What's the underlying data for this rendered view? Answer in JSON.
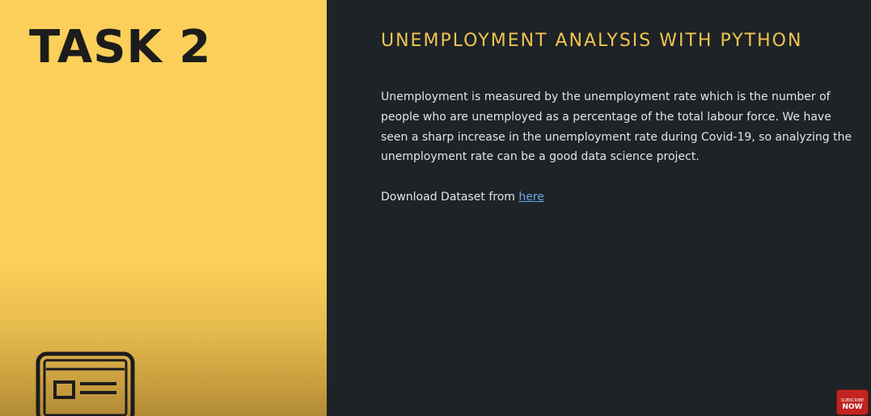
{
  "left_panel": {
    "task_title": "TASK 2",
    "icon": "id-card-icon"
  },
  "right_panel": {
    "title": "UNEMPLOYMENT ANALYSIS WITH PYTHON",
    "description": "Unemployment is measured by the unemployment rate which is the number of people who are unemployed as a percentage of the total labour force. We have seen a sharp increase in the unemployment rate during Covid-19, so analyzing the unemployment rate can be a good data science project.",
    "download_prefix": "Download Dataset from ",
    "download_link_text": "here"
  },
  "subscribe_badge": {
    "small_text": "SUBSCRIBE",
    "big_text": "NOW"
  },
  "colors": {
    "left_background": "#fbcf5a",
    "right_background": "#1d2326",
    "title_accent": "#f1c350",
    "link": "#6ea8e8",
    "badge": "#c2231f"
  }
}
